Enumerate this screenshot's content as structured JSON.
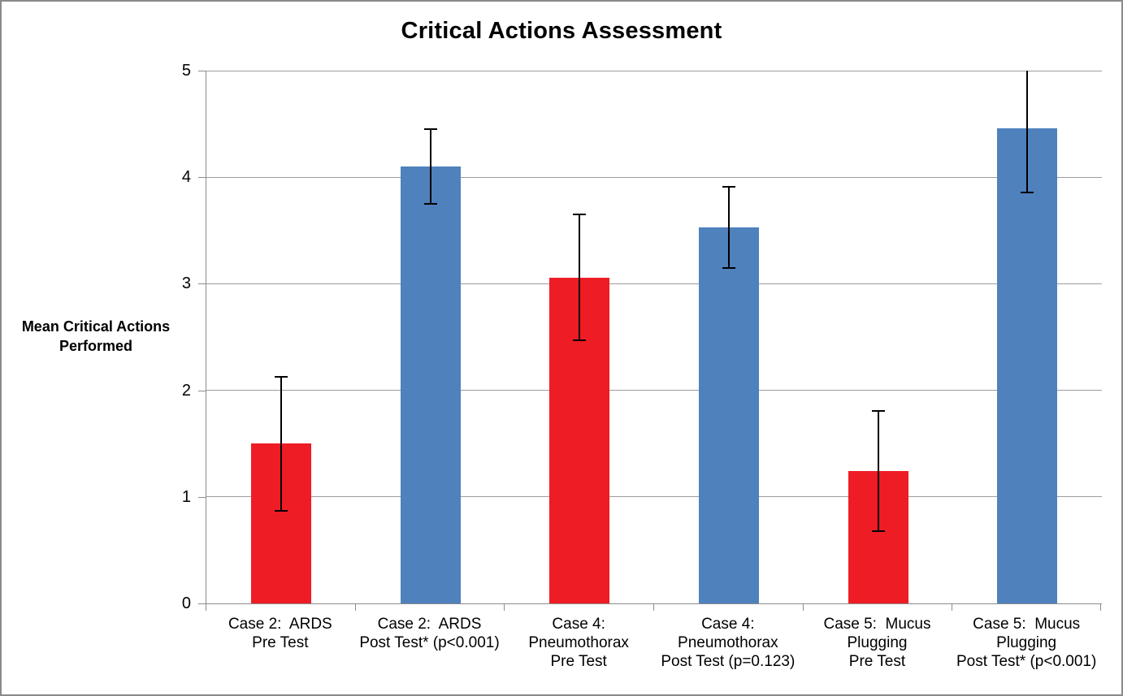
{
  "frame": {
    "background": "#FFFFFF",
    "border_color": "#8A8A8A"
  },
  "chart_data": {
    "type": "bar",
    "title": "Critical Actions Assessment",
    "ylabel": "Mean Critical Actions Performed",
    "xlabel": "",
    "ylim": [
      0,
      5
    ],
    "yticks": [
      0,
      1,
      2,
      3,
      4,
      5
    ],
    "grid": true,
    "legend": false,
    "error_bars": true,
    "colors": {
      "pre_test": "#EE1C25",
      "post_test": "#4F81BD",
      "error_bar": "#000000",
      "gridline": "#9C9C9C",
      "axis": "#8C8C8C",
      "text": "#000000"
    },
    "categories": [
      "Case 2:  ARDS\nPre Test",
      "Case 2:  ARDS\nPost Test* (p<0.001)",
      "Case 4:\nPneumothorax\nPre Test",
      "Case 4:\nPneumothorax\nPost Test (p=0.123)",
      "Case 5:  Mucus\nPlugging\nPre Test",
      "Case 5:  Mucus\nPlugging\nPost Test* (p<0.001)"
    ],
    "series": [
      {
        "name": "Mean Critical Actions Performed",
        "values": [
          1.5,
          4.1,
          3.06,
          3.53,
          1.24,
          4.46
        ],
        "error_low": [
          0.87,
          3.75,
          2.47,
          3.15,
          0.68,
          3.86
        ],
        "error_high": [
          2.13,
          4.45,
          3.65,
          3.91,
          1.81,
          5.08
        ],
        "colors": [
          "#EE1C25",
          "#4F81BD",
          "#EE1C25",
          "#4F81BD",
          "#EE1C25",
          "#4F81BD"
        ],
        "groups": [
          "pre_test",
          "post_test",
          "pre_test",
          "post_test",
          "pre_test",
          "post_test"
        ]
      }
    ]
  }
}
